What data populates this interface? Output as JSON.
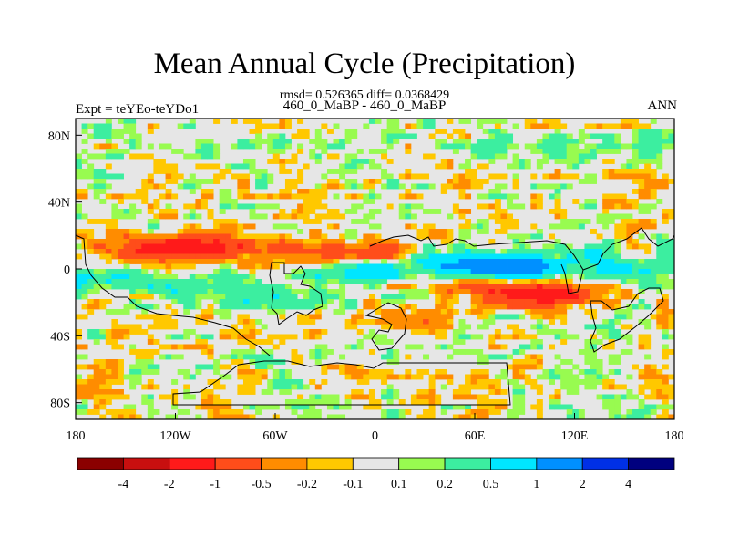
{
  "chart_data": {
    "type": "heatmap",
    "title": "Mean Annual Cycle (Precipitation)",
    "stats_line": "rmsd= 0.526365 diff= 0.0368429",
    "subtitle": "460_0_MaBP - 460_0_MaBP",
    "left_label": "Expt = teYEo-teYDo1",
    "right_label": "ANN",
    "x_axis": {
      "range": [
        -180,
        180
      ],
      "ticks": [
        {
          "value": -180,
          "label": "180"
        },
        {
          "value": -120,
          "label": "120W"
        },
        {
          "value": -60,
          "label": "60W"
        },
        {
          "value": 0,
          "label": "0"
        },
        {
          "value": 60,
          "label": "60E"
        },
        {
          "value": 120,
          "label": "120E"
        },
        {
          "value": 180,
          "label": "180"
        }
      ]
    },
    "y_axis": {
      "range": [
        -90,
        90
      ],
      "ticks": [
        {
          "value": 80,
          "label": "80N"
        },
        {
          "value": 40,
          "label": "40N"
        },
        {
          "value": 0,
          "label": "0"
        },
        {
          "value": -40,
          "label": "40S"
        },
        {
          "value": -80,
          "label": "80S"
        }
      ]
    },
    "colorbar": {
      "levels": [
        -4,
        -2,
        -1,
        -0.5,
        -0.2,
        -0.1,
        0.1,
        0.2,
        0.5,
        1,
        2,
        4
      ],
      "level_labels": [
        "-4",
        "-2",
        "-1",
        "-0.5",
        "-0.2",
        "-0.1",
        "0.1",
        "0.2",
        "0.5",
        "1",
        "2",
        "4"
      ],
      "colors": [
        "#8b0000",
        "#c80f0f",
        "#ff1a1a",
        "#ff4d1a",
        "#ff8c00",
        "#ffc800",
        "#e6e6e6",
        "#98fb50",
        "#3ceea0",
        "#00e6ff",
        "#0090ff",
        "#0030e6",
        "#00007f"
      ]
    },
    "field_features": [
      {
        "lon": -130,
        "lat": 12,
        "value": -1.2
      },
      {
        "lon": -95,
        "lat": 14,
        "value": -0.8
      },
      {
        "lon": -40,
        "lat": 10,
        "value": -0.7
      },
      {
        "lon": 10,
        "lat": 8,
        "value": -0.8
      },
      {
        "lon": 100,
        "lat": -15,
        "value": -1.5
      },
      {
        "lon": 70,
        "lat": -10,
        "value": -0.6
      },
      {
        "lon": 80,
        "lat": 0,
        "value": 1.6
      },
      {
        "lon": 40,
        "lat": 5,
        "value": 0.8
      },
      {
        "lon": -10,
        "lat": 0,
        "value": 0.8
      },
      {
        "lon": -120,
        "lat": -10,
        "value": 0.6
      },
      {
        "lon": -75,
        "lat": -18,
        "value": 0.5
      },
      {
        "lon": -150,
        "lat": -10,
        "value": -0.4
      },
      {
        "lon": -165,
        "lat": -8,
        "value": 0.8
      },
      {
        "lon": 20,
        "lat": -30,
        "value": -0.4
      },
      {
        "lon": 150,
        "lat": 0,
        "value": 0.5
      },
      {
        "lon": 120,
        "lat": 10,
        "value": 0.3
      }
    ]
  }
}
